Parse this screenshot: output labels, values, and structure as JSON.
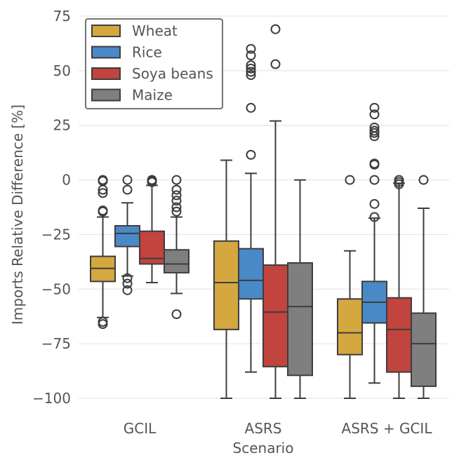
{
  "chart_data": {
    "type": "box",
    "title": "",
    "xlabel": "Scenario",
    "ylabel": "Imports Relative Difference [%]",
    "ylim": [
      -100,
      75
    ],
    "yticks": [
      75,
      50,
      25,
      0,
      -25,
      -50,
      -75,
      -100
    ],
    "ytick_labels": [
      "75",
      "50",
      "25",
      "0",
      "−25",
      "−50",
      "−75",
      "−100"
    ],
    "categories": [
      "GCIL",
      "ASRS",
      "ASRS + GCIL"
    ],
    "grid": "horizontal",
    "legend_position": "upper-left",
    "series": [
      {
        "name": "Wheat",
        "color": "#d4a73f",
        "boxes": [
          {
            "whisker_low": -63,
            "q1": -46.5,
            "median": -40.5,
            "q3": -35,
            "whisker_high": -17,
            "outliers": [
              -65,
              -66,
              -14,
              -14.5,
              -6,
              -4.5,
              -0.5,
              0
            ]
          },
          {
            "whisker_low": -100,
            "q1": -68.5,
            "median": -47,
            "q3": -28,
            "whisker_high": 9,
            "outliers": []
          },
          {
            "whisker_low": -100,
            "q1": -80,
            "median": -70,
            "q3": -54.5,
            "whisker_high": -32.5,
            "outliers": [
              0
            ]
          }
        ]
      },
      {
        "name": "Rice",
        "color": "#4a89c8",
        "boxes": [
          {
            "whisker_low": -44,
            "q1": -30.5,
            "median": -24.5,
            "q3": -21,
            "whisker_high": -10.5,
            "outliers": [
              -45,
              -47.5,
              -50.5,
              -4.5,
              0
            ]
          },
          {
            "whisker_low": -88,
            "q1": -54.5,
            "median": -46,
            "q3": -31.5,
            "whisker_high": 3,
            "outliers": [
              11.5,
              33,
              48,
              49.5,
              51,
              52.5,
              57,
              60
            ]
          },
          {
            "whisker_low": -93,
            "q1": -65.5,
            "median": -56,
            "q3": -46.5,
            "whisker_high": -17.5,
            "outliers": [
              -17,
              -11,
              0,
              7,
              7.5,
              20,
              21.5,
              22.5,
              24,
              30,
              33
            ]
          }
        ]
      },
      {
        "name": "Soya beans",
        "color": "#c1443e",
        "boxes": [
          {
            "whisker_low": -47,
            "q1": -38.5,
            "median": -36,
            "q3": -23.5,
            "whisker_high": -2.5,
            "outliers": [
              -1,
              -0.5,
              0
            ]
          },
          {
            "whisker_low": -100,
            "q1": -85.5,
            "median": -60.5,
            "q3": -39,
            "whisker_high": 27,
            "outliers": [
              53,
              69
            ]
          },
          {
            "whisker_low": -100,
            "q1": -88,
            "median": -68.5,
            "q3": -54,
            "whisker_high": -1.5,
            "outliers": [
              -2,
              -1,
              0
            ]
          }
        ]
      },
      {
        "name": "Maize",
        "color": "#7f7f7f",
        "boxes": [
          {
            "whisker_low": -52,
            "q1": -42.5,
            "median": -38.5,
            "q3": -32,
            "whisker_high": -17,
            "outliers": [
              -61.5,
              -14.5,
              -12.5,
              -9.5,
              -7,
              -4.5,
              0
            ]
          },
          {
            "whisker_low": -100,
            "q1": -89.5,
            "median": -58,
            "q3": -38,
            "whisker_high": 0,
            "outliers": []
          },
          {
            "whisker_low": -100,
            "q1": -94.5,
            "median": -75,
            "q3": -61,
            "whisker_high": -13,
            "outliers": [
              0
            ]
          }
        ]
      }
    ]
  }
}
